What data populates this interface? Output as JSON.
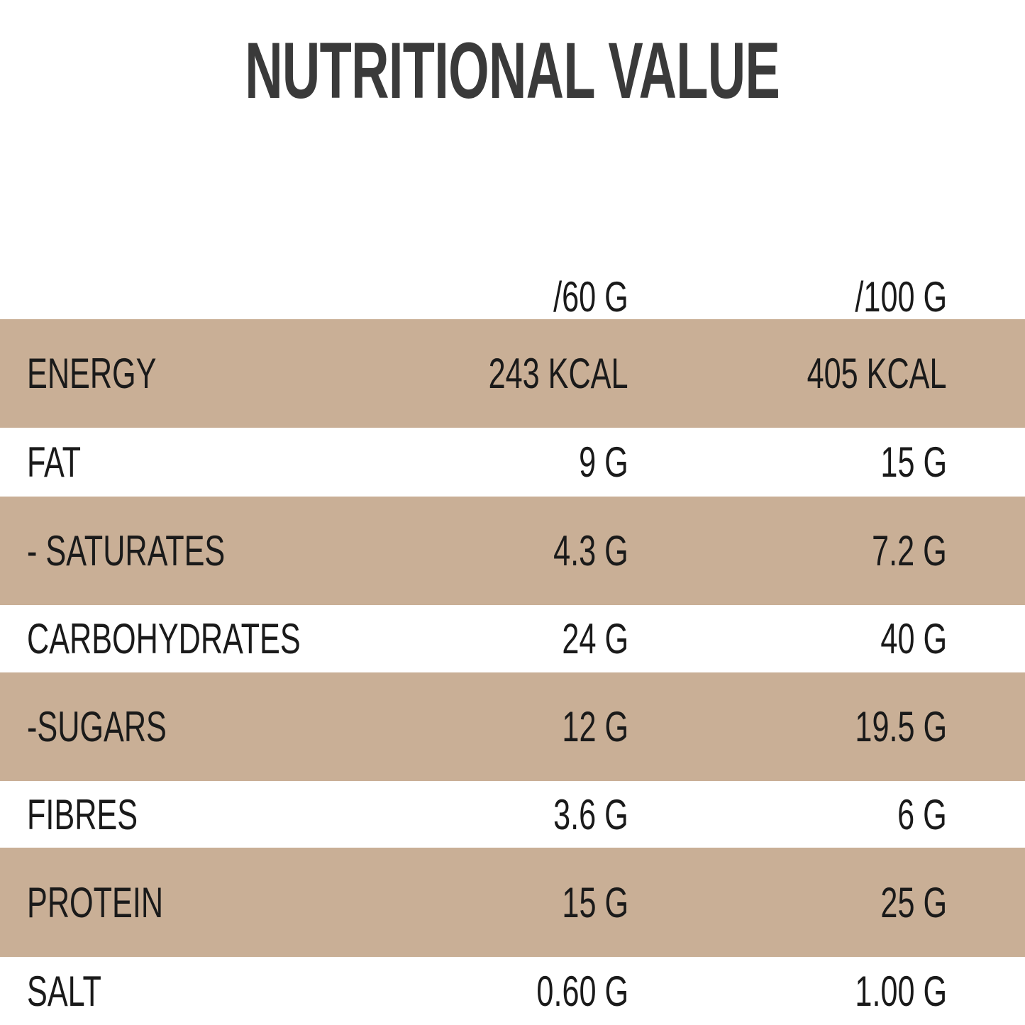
{
  "header": {
    "title": "NUTRITIONAL VALUE"
  },
  "table": {
    "columns": [
      "/60 G",
      "/100 G"
    ],
    "rows": [
      [
        "ENERGY",
        "243 KCAL",
        "405 KCAL"
      ],
      [
        "FAT",
        "9 G",
        "15 G"
      ],
      [
        "- SATURATES",
        "4.3 G",
        "7.2 G"
      ],
      [
        "CARBOHYDRATES",
        "24 G",
        "40 G"
      ],
      [
        "-SUGARS",
        "12 G",
        "19.5 G"
      ],
      [
        "FIBRES",
        "3.6 G",
        "6 G"
      ],
      [
        "PROTEIN",
        "15 G",
        "25 G"
      ],
      [
        "SALT",
        "0.60 G",
        "1.00 G"
      ]
    ]
  }
}
